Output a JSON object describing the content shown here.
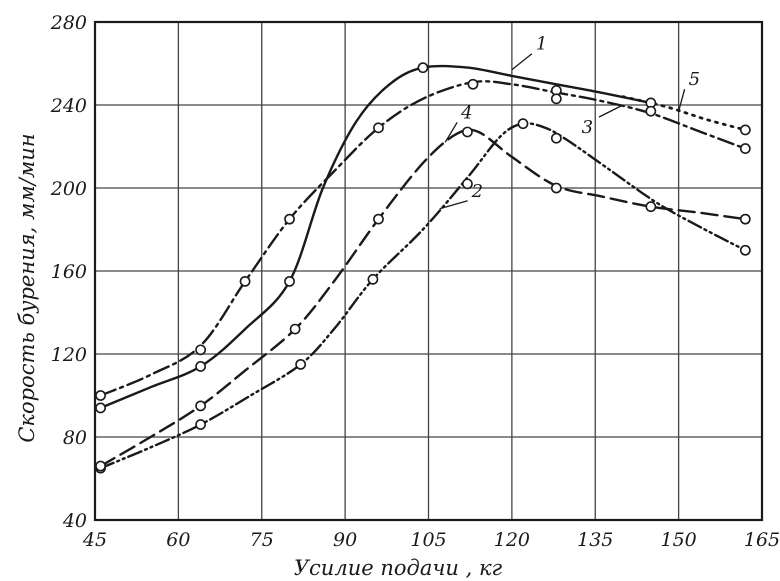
{
  "chart_data": {
    "type": "line",
    "xlabel": "Усилие подачи , кг",
    "ylabel": "Скорость бурения, мм/мин",
    "xlim": [
      45,
      165
    ],
    "ylim": [
      40,
      280
    ],
    "x_ticks": [
      "45",
      "60",
      "75",
      "90",
      "105",
      "120",
      "135",
      "150",
      "165"
    ],
    "y_ticks": [
      "40",
      "80",
      "120",
      "160",
      "200",
      "240",
      "280"
    ],
    "grid": true,
    "legend": "none",
    "series": [
      {
        "name": "1",
        "line_style": "solid",
        "markers": [
          [
            46,
            94
          ],
          [
            64,
            114
          ],
          [
            80,
            155
          ],
          [
            104,
            258
          ],
          [
            128,
            247
          ],
          [
            145,
            241
          ]
        ],
        "curve": [
          [
            46,
            94
          ],
          [
            55,
            104
          ],
          [
            64,
            114
          ],
          [
            72,
            132
          ],
          [
            80,
            155
          ],
          [
            86,
            200
          ],
          [
            92,
            232
          ],
          [
            98,
            250
          ],
          [
            104,
            258
          ],
          [
            112,
            258
          ],
          [
            120,
            254
          ],
          [
            128,
            250
          ],
          [
            136,
            246
          ],
          [
            145,
            241
          ]
        ]
      },
      {
        "name": "2",
        "line_style": "dash-dot-dot",
        "markers": [
          [
            46,
            65
          ],
          [
            64,
            86
          ],
          [
            82,
            115
          ],
          [
            95,
            156
          ],
          [
            112,
            202
          ],
          [
            122,
            231
          ],
          [
            128,
            224
          ],
          [
            162,
            170
          ]
        ],
        "curve": [
          [
            46,
            65
          ],
          [
            55,
            75
          ],
          [
            64,
            86
          ],
          [
            73,
            100
          ],
          [
            82,
            115
          ],
          [
            88,
            132
          ],
          [
            95,
            156
          ],
          [
            104,
            180
          ],
          [
            112,
            205
          ],
          [
            118,
            225
          ],
          [
            122,
            231
          ],
          [
            126,
            229
          ],
          [
            130,
            223
          ],
          [
            138,
            208
          ],
          [
            146,
            193
          ],
          [
            154,
            181
          ],
          [
            162,
            170
          ]
        ]
      },
      {
        "name": "3",
        "line_style": "dash-dot",
        "markers": [
          [
            46,
            100
          ],
          [
            64,
            122
          ],
          [
            72,
            155
          ],
          [
            80,
            185
          ],
          [
            96,
            229
          ],
          [
            113,
            250
          ],
          [
            128,
            243
          ],
          [
            145,
            237
          ],
          [
            162,
            219
          ]
        ],
        "curve": [
          [
            46,
            100
          ],
          [
            55,
            110
          ],
          [
            64,
            124
          ],
          [
            72,
            155
          ],
          [
            80,
            185
          ],
          [
            88,
            208
          ],
          [
            96,
            229
          ],
          [
            104,
            243
          ],
          [
            113,
            251
          ],
          [
            120,
            250
          ],
          [
            128,
            246
          ],
          [
            136,
            242
          ],
          [
            145,
            236
          ],
          [
            154,
            227
          ],
          [
            162,
            219
          ]
        ]
      },
      {
        "name": "4",
        "line_style": "dashed",
        "markers": [
          [
            46,
            66
          ],
          [
            64,
            95
          ],
          [
            81,
            132
          ],
          [
            96,
            185
          ],
          [
            112,
            227
          ],
          [
            128,
            200
          ],
          [
            145,
            191
          ],
          [
            162,
            185
          ]
        ],
        "curve": [
          [
            46,
            66
          ],
          [
            55,
            80
          ],
          [
            64,
            95
          ],
          [
            72,
            112
          ],
          [
            81,
            132
          ],
          [
            88,
            155
          ],
          [
            96,
            185
          ],
          [
            104,
            212
          ],
          [
            110,
            226
          ],
          [
            114,
            227
          ],
          [
            120,
            215
          ],
          [
            128,
            201
          ],
          [
            136,
            196
          ],
          [
            145,
            191
          ],
          [
            154,
            188
          ],
          [
            162,
            185
          ]
        ]
      },
      {
        "name": "5",
        "line_style": "dotted",
        "markers": [
          [
            162,
            228
          ]
        ],
        "curve": [
          [
            140,
            244
          ],
          [
            148,
            239
          ],
          [
            155,
            233
          ],
          [
            162,
            228
          ]
        ]
      }
    ]
  },
  "colors": {
    "ink": "#1a1a1a",
    "grid": "#444444",
    "marker_fill": "#ffffff",
    "background": "#ffffff"
  }
}
